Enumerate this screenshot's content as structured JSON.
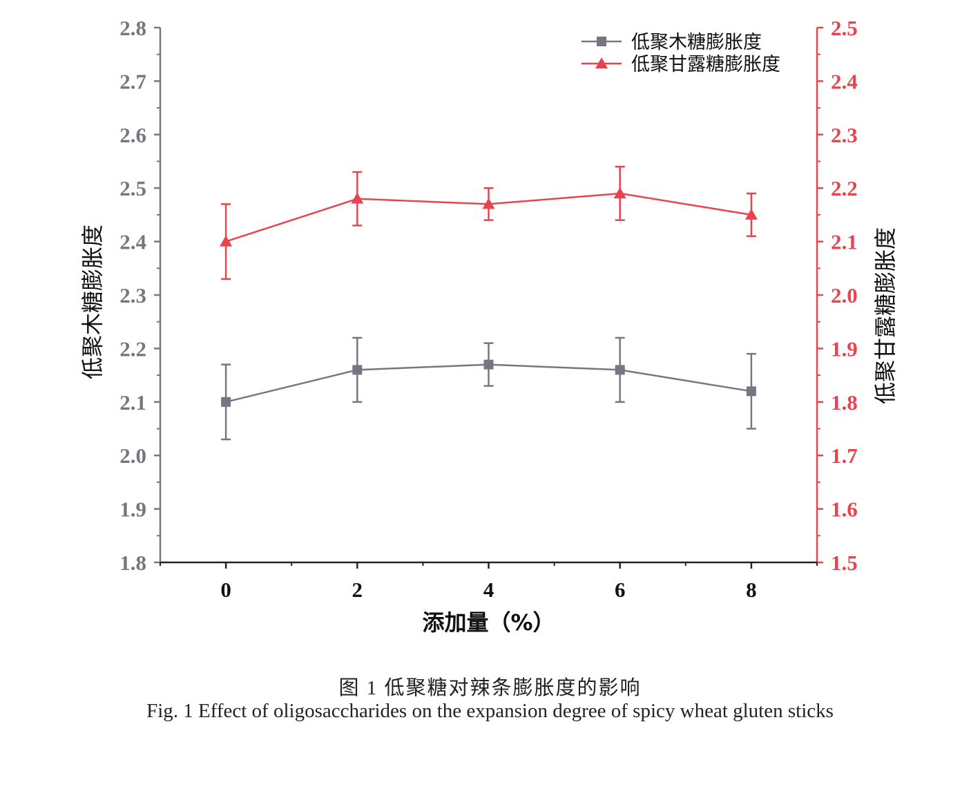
{
  "chart_data": {
    "type": "line",
    "x": [
      0,
      2,
      4,
      6,
      8
    ],
    "xlabel": "添加量（%）",
    "xlim": [
      -1,
      9
    ],
    "xticks": [
      0,
      2,
      4,
      6,
      8
    ],
    "ylabel_left": "低聚木糖膨胀度",
    "ylim_left": [
      1.8,
      2.8
    ],
    "yticks_left": [
      "1.8",
      "1.9",
      "2.0",
      "2.1",
      "2.2",
      "2.3",
      "2.4",
      "2.5",
      "2.6",
      "2.7",
      "2.8"
    ],
    "ylabel_right": "低聚甘露糖膨胀度",
    "ylim_right": [
      1.5,
      2.5
    ],
    "yticks_right": [
      "1.5",
      "1.6",
      "1.7",
      "1.8",
      "1.9",
      "2.0",
      "2.1",
      "2.2",
      "2.3",
      "2.4",
      "2.5"
    ],
    "grid": false,
    "legend_position": "top-right",
    "series": [
      {
        "name": "低聚木糖膨胀度",
        "axis": "left",
        "marker": "square",
        "color": "#7a7382",
        "values": [
          2.1,
          2.16,
          2.17,
          2.16,
          2.12
        ],
        "errors": [
          0.07,
          0.06,
          0.04,
          0.06,
          0.07
        ]
      },
      {
        "name": "低聚甘露糖膨胀度",
        "axis": "right",
        "marker": "triangle",
        "color": "#e8444d",
        "values": [
          2.1,
          2.18,
          2.17,
          2.19,
          2.15
        ],
        "errors": [
          0.07,
          0.05,
          0.03,
          0.05,
          0.04
        ]
      }
    ]
  },
  "caption": {
    "chinese": "图 1  低聚糖对辣条膨胀度的影响",
    "english": "Fig. 1 Effect of oligosaccharides on the expansion degree of spicy wheat gluten sticks"
  }
}
